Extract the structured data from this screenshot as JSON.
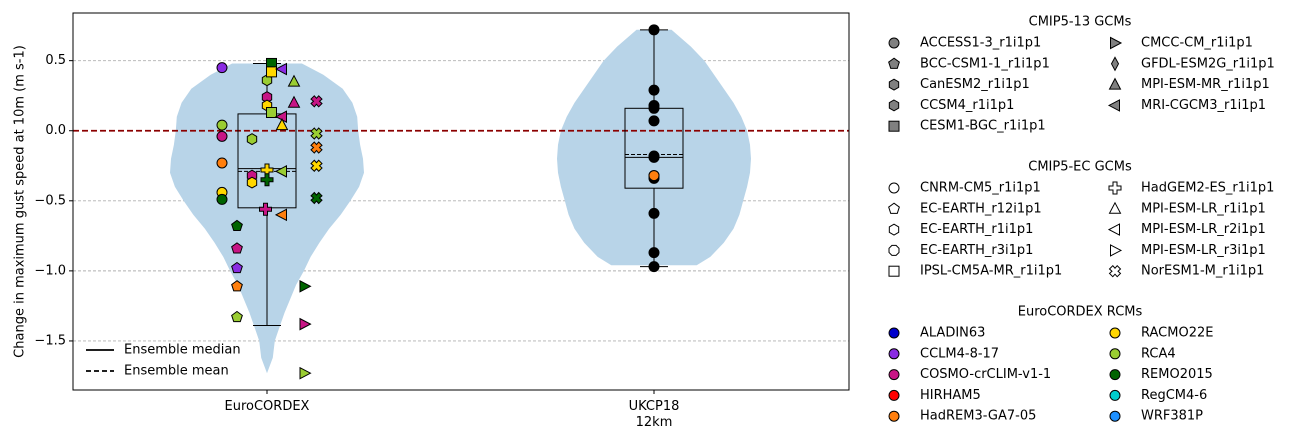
{
  "chart_data": {
    "type": "violin",
    "ylabel": "Change in maximum gust speed at 10m (m s-1)",
    "ylim": [
      -1.85,
      0.84
    ],
    "yticks": [
      -1.5,
      -1.0,
      -0.5,
      0.0,
      0.5
    ],
    "ytick_labels": [
      "−1.5",
      "−1.0",
      "−0.5",
      "0.0",
      "0.5"
    ],
    "grid": "horizontal dashed",
    "zero_line_color": "#8b0000",
    "violin_color": "#b8d4e8",
    "categories": [
      {
        "label": "EuroCORDEX",
        "sublabel": ""
      },
      {
        "label": "UKCP18",
        "sublabel": "12km"
      }
    ],
    "violins": [
      {
        "category": "EuroCORDEX",
        "min": -1.73,
        "max": 0.48,
        "profile": [
          [
            -1.73,
            0.0
          ],
          [
            -1.62,
            0.06
          ],
          [
            -1.5,
            0.08
          ],
          [
            -1.4,
            0.13
          ],
          [
            -1.3,
            0.18
          ],
          [
            -1.2,
            0.24
          ],
          [
            -1.1,
            0.3
          ],
          [
            -1.0,
            0.38
          ],
          [
            -0.9,
            0.45
          ],
          [
            -0.8,
            0.54
          ],
          [
            -0.7,
            0.64
          ],
          [
            -0.6,
            0.76
          ],
          [
            -0.5,
            0.86
          ],
          [
            -0.4,
            0.95
          ],
          [
            -0.3,
            1.0
          ],
          [
            -0.2,
            0.99
          ],
          [
            -0.1,
            0.96
          ],
          [
            0.0,
            0.94
          ],
          [
            0.1,
            0.93
          ],
          [
            0.2,
            0.88
          ],
          [
            0.3,
            0.78
          ],
          [
            0.4,
            0.58
          ],
          [
            0.48,
            0.36
          ]
        ]
      },
      {
        "category": "UKCP18",
        "min": -0.96,
        "max": 0.72,
        "profile": [
          [
            -0.96,
            0.44
          ],
          [
            -0.9,
            0.58
          ],
          [
            -0.8,
            0.72
          ],
          [
            -0.7,
            0.82
          ],
          [
            -0.6,
            0.88
          ],
          [
            -0.5,
            0.92
          ],
          [
            -0.4,
            0.96
          ],
          [
            -0.3,
            0.99
          ],
          [
            -0.2,
            1.0
          ],
          [
            -0.1,
            0.99
          ],
          [
            0.0,
            0.96
          ],
          [
            0.1,
            0.9
          ],
          [
            0.2,
            0.82
          ],
          [
            0.3,
            0.72
          ],
          [
            0.4,
            0.62
          ],
          [
            0.5,
            0.52
          ],
          [
            0.6,
            0.38
          ],
          [
            0.72,
            0.18
          ]
        ]
      }
    ],
    "boxes": [
      {
        "category": "EuroCORDEX",
        "q1": -0.55,
        "median": -0.27,
        "mean": -0.29,
        "q3": 0.12,
        "whisker_low": -1.39,
        "whisker_high": 0.48
      },
      {
        "category": "UKCP18",
        "q1": -0.41,
        "median": -0.19,
        "mean": -0.17,
        "q3": 0.16,
        "whisker_low": -0.97,
        "whisker_high": 0.72
      }
    ],
    "ukcp18_points": [
      0.72,
      0.29,
      0.18,
      0.16,
      0.07,
      -0.18,
      -0.19,
      -0.34,
      -0.32,
      -0.59,
      -0.87,
      -0.97
    ],
    "ukcp18_highlight": {
      "value": -0.32,
      "color": "#ff7f0e"
    },
    "euro_points": [
      {
        "y": 0.45,
        "marker": "circle",
        "color": "#8a2be2",
        "slot": -3
      },
      {
        "y": 0.04,
        "marker": "circle",
        "color": "#9acd32",
        "slot": -3
      },
      {
        "y": -0.04,
        "marker": "circle",
        "color": "#c71585",
        "slot": -3
      },
      {
        "y": -0.23,
        "marker": "circle",
        "color": "#ff7f0e",
        "slot": -3
      },
      {
        "y": -0.44,
        "marker": "circle",
        "color": "#ffd700",
        "slot": -3
      },
      {
        "y": -0.49,
        "marker": "circle",
        "color": "#006400",
        "slot": -3
      },
      {
        "y": -0.68,
        "marker": "pentagon",
        "color": "#006400",
        "slot": -2
      },
      {
        "y": -0.84,
        "marker": "pentagon",
        "color": "#c71585",
        "slot": -2
      },
      {
        "y": -0.98,
        "marker": "pentagon",
        "color": "#8a2be2",
        "slot": -2
      },
      {
        "y": -1.11,
        "marker": "pentagon",
        "color": "#ff7f0e",
        "slot": -2
      },
      {
        "y": -1.33,
        "marker": "pentagon",
        "color": "#9acd32",
        "slot": -2
      },
      {
        "y": -0.06,
        "marker": "hexagon",
        "color": "#9acd32",
        "slot": -1
      },
      {
        "y": 0.36,
        "marker": "hexagon",
        "color": "#9acd32",
        "slot": 0
      },
      {
        "y": 0.24,
        "marker": "hexagon",
        "color": "#c71585",
        "slot": 0
      },
      {
        "y": 0.18,
        "marker": "hexagon",
        "color": "#ffd700",
        "slot": 0
      },
      {
        "y": -0.32,
        "marker": "hexagon",
        "color": "#c71585",
        "slot": -1
      },
      {
        "y": -0.37,
        "marker": "hexagon",
        "color": "#ffd700",
        "slot": -1
      },
      {
        "y": 0.48,
        "marker": "square",
        "color": "#006400",
        "slot": 0.3
      },
      {
        "y": 0.42,
        "marker": "square",
        "color": "#ffd700",
        "slot": 0.3
      },
      {
        "y": 0.13,
        "marker": "square",
        "color": "#9acd32",
        "slot": 0.3
      },
      {
        "y": -0.28,
        "marker": "plus",
        "color": "#ffd700",
        "slot": 0
      },
      {
        "y": -0.35,
        "marker": "plus",
        "color": "#006400",
        "slot": 0
      },
      {
        "y": -0.56,
        "marker": "plus",
        "color": "#c71585",
        "slot": -0.1
      },
      {
        "y": 0.44,
        "marker": "triangle-left",
        "color": "#8a2be2",
        "slot": 1
      },
      {
        "y": 0.1,
        "marker": "triangle-left",
        "color": "#c71585",
        "slot": 1
      },
      {
        "y": 0.04,
        "marker": "triangle-up",
        "color": "#ffd700",
        "slot": 1
      },
      {
        "y": -0.29,
        "marker": "triangle-left",
        "color": "#9acd32",
        "slot": 1
      },
      {
        "y": -0.6,
        "marker": "triangle-left",
        "color": "#ff7f0e",
        "slot": 1
      },
      {
        "y": 0.35,
        "marker": "triangle-up",
        "color": "#9acd32",
        "slot": 1.8
      },
      {
        "y": 0.2,
        "marker": "triangle-up",
        "color": "#c71585",
        "slot": 1.8
      },
      {
        "y": -1.11,
        "marker": "triangle-right",
        "color": "#006400",
        "slot": 2.5
      },
      {
        "y": -1.38,
        "marker": "triangle-right",
        "color": "#c71585",
        "slot": 2.5
      },
      {
        "y": -1.73,
        "marker": "triangle-right",
        "color": "#9acd32",
        "slot": 2.5
      },
      {
        "y": 0.21,
        "marker": "cross",
        "color": "#c71585",
        "slot": 3.3
      },
      {
        "y": -0.02,
        "marker": "cross",
        "color": "#9acd32",
        "slot": 3.3
      },
      {
        "y": -0.12,
        "marker": "cross",
        "color": "#ff7f0e",
        "slot": 3.3
      },
      {
        "y": -0.25,
        "marker": "cross",
        "color": "#ffd700",
        "slot": 3.3
      },
      {
        "y": -0.48,
        "marker": "cross",
        "color": "#006400",
        "slot": 3.3
      }
    ],
    "plot_legend": [
      {
        "label": "Ensemble median",
        "style": "solid"
      },
      {
        "label": "Ensemble mean",
        "style": "dashed"
      }
    ],
    "legend_groups": [
      {
        "title": "CMIP5-13 GCMs",
        "columns": 2,
        "items": [
          {
            "label": "ACCESS1-3_r1i1p1",
            "marker": "circle",
            "fill": "#808080"
          },
          {
            "label": "BCC-CSM1-1_r1i1p1",
            "marker": "pentagon",
            "fill": "#808080"
          },
          {
            "label": "CanESM2_r1i1p1",
            "marker": "hexagon",
            "fill": "#808080"
          },
          {
            "label": "CCSM4_r1i1p1",
            "marker": "hexagon",
            "fill": "#808080"
          },
          {
            "label": "CESM1-BGC_r1i1p1",
            "marker": "square",
            "fill": "#808080"
          },
          {
            "label": "CMCC-CM_r1i1p1",
            "marker": "triangle-right",
            "fill": "#808080"
          },
          {
            "label": "GFDL-ESM2G_r1i1p1",
            "marker": "diamond-thin",
            "fill": "#808080"
          },
          {
            "label": "MPI-ESM-MR_r1i1p1",
            "marker": "triangle-up",
            "fill": "#808080"
          },
          {
            "label": "MRI-CGCM3_r1i1p1",
            "marker": "triangle-left",
            "fill": "#808080"
          }
        ]
      },
      {
        "title": "CMIP5-EC GCMs",
        "columns": 2,
        "items": [
          {
            "label": "CNRM-CM5_r1i1p1",
            "marker": "circle",
            "fill": "#ffffff"
          },
          {
            "label": "EC-EARTH_r12i1p1",
            "marker": "pentagon",
            "fill": "#ffffff"
          },
          {
            "label": "EC-EARTH_r1i1p1",
            "marker": "hexagon",
            "fill": "#ffffff"
          },
          {
            "label": "EC-EARTH_r3i1p1",
            "marker": "octagon",
            "fill": "#ffffff"
          },
          {
            "label": "IPSL-CM5A-MR_r1i1p1",
            "marker": "square",
            "fill": "#ffffff"
          },
          {
            "label": "HadGEM2-ES_r1i1p1",
            "marker": "plus",
            "fill": "#ffffff"
          },
          {
            "label": "MPI-ESM-LR_r1i1p1",
            "marker": "triangle-up",
            "fill": "#ffffff"
          },
          {
            "label": "MPI-ESM-LR_r2i1p1",
            "marker": "triangle-left",
            "fill": "#ffffff"
          },
          {
            "label": "MPI-ESM-LR_r3i1p1",
            "marker": "triangle-right",
            "fill": "#ffffff"
          },
          {
            "label": "NorESM1-M_r1i1p1",
            "marker": "cross",
            "fill": "#ffffff"
          }
        ]
      },
      {
        "title": "EuroCORDEX RCMs",
        "columns": 2,
        "items": [
          {
            "label": "ALADIN63",
            "marker": "circle",
            "fill": "#0000cd"
          },
          {
            "label": "CCLM4-8-17",
            "marker": "circle",
            "fill": "#8a2be2"
          },
          {
            "label": "COSMO-crCLIM-v1-1",
            "marker": "circle",
            "fill": "#c71585"
          },
          {
            "label": "HIRHAM5",
            "marker": "circle",
            "fill": "#ff0000"
          },
          {
            "label": "HadREM3-GA7-05",
            "marker": "circle",
            "fill": "#ff7f0e"
          },
          {
            "label": "RACMO22E",
            "marker": "circle",
            "fill": "#ffd700"
          },
          {
            "label": "RCA4",
            "marker": "circle",
            "fill": "#9acd32"
          },
          {
            "label": "REMO2015",
            "marker": "circle",
            "fill": "#006400"
          },
          {
            "label": "RegCM4-6",
            "marker": "circle",
            "fill": "#00cccc"
          },
          {
            "label": "WRF381P",
            "marker": "circle",
            "fill": "#1e90ff"
          }
        ]
      }
    ]
  }
}
